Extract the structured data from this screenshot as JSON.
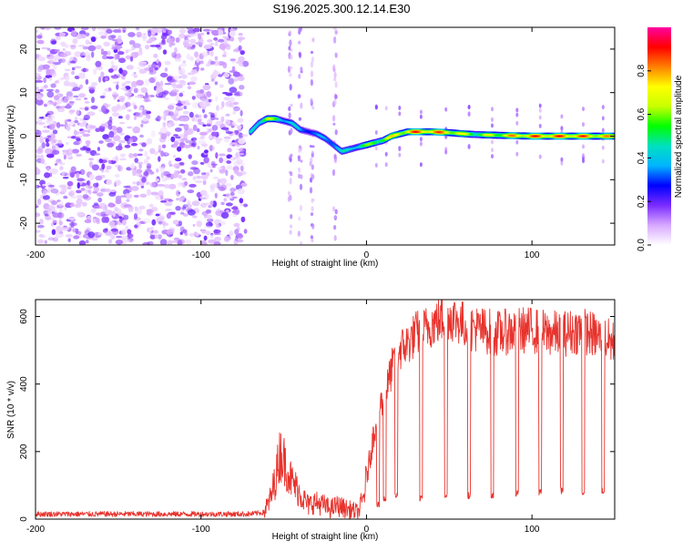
{
  "title": "S196.2025.300.12.14.E30",
  "chart_data": [
    {
      "type": "heatmap",
      "xlabel": "Height of straight line (km)",
      "ylabel": "Frequency (Hz)",
      "xlim": [
        -200,
        150
      ],
      "ylim": [
        -25,
        25
      ],
      "x_ticks": [
        -200,
        -100,
        0,
        100
      ],
      "x_tick_labels": [
        "-200",
        "-100",
        "0",
        "100"
      ],
      "y_ticks": [
        -20,
        -10,
        0,
        10,
        20
      ],
      "y_tick_labels": [
        "-20",
        "-10",
        "0",
        "10",
        "20"
      ],
      "colorbar": {
        "label": "Normalized spectral amplitude",
        "range": [
          0,
          1
        ],
        "ticks": [
          0.0,
          0.2,
          0.4,
          0.6,
          0.8
        ],
        "tick_labels": [
          "0.0",
          "0.2",
          "0.4",
          "0.6",
          "0.8"
        ],
        "colors": [
          "#ffffff",
          "#d8a8ff",
          "#7a2cff",
          "#0000ff",
          "#00b4ff",
          "#00e0c0",
          "#00ff00",
          "#c8ff00",
          "#ffff00",
          "#ff8000",
          "#ff0000",
          "#ff00a0"
        ]
      },
      "noise_region": {
        "x_from": -200,
        "x_to": -73
      },
      "signal_track": {
        "x": [
          -70,
          -65,
          -60,
          -55,
          -50,
          -45,
          -40,
          -35,
          -30,
          -25,
          -20,
          -15,
          -10,
          -5,
          0,
          5,
          10,
          15,
          20,
          25,
          30,
          40,
          50,
          60,
          70,
          80,
          90,
          100,
          110,
          120,
          130,
          140,
          150
        ],
        "frequency": [
          1,
          3,
          4,
          4,
          3.5,
          3,
          1.5,
          1,
          0.5,
          -0.5,
          -2,
          -3.5,
          -3,
          -2.5,
          -2,
          -1.5,
          -1,
          0,
          0.5,
          1,
          1,
          1,
          0.8,
          0.5,
          0.3,
          0.2,
          0.1,
          0,
          0,
          0,
          0,
          0,
          0
        ],
        "amplitude": [
          0.45,
          0.55,
          0.7,
          0.6,
          0.5,
          0.45,
          0.4,
          0.4,
          0.35,
          0.4,
          0.45,
          0.45,
          0.5,
          0.55,
          0.6,
          0.65,
          0.7,
          0.75,
          0.8,
          0.85,
          0.9,
          0.9,
          0.85,
          0.7,
          0.65,
          0.75,
          0.85,
          0.9,
          0.9,
          0.9,
          0.9,
          0.85,
          0.8
        ]
      }
    },
    {
      "type": "line",
      "xlabel": "Height of straight line (km)",
      "ylabel": "SNR (10 * v/v)",
      "xlim": [
        -200,
        150
      ],
      "ylim": [
        0,
        650
      ],
      "x_ticks": [
        -200,
        -100,
        0,
        100
      ],
      "x_tick_labels": [
        "-200",
        "-100",
        "0",
        "100"
      ],
      "y_ticks": [
        0,
        200,
        400,
        600
      ],
      "y_tick_labels": [
        "0",
        "200",
        "400",
        "600"
      ],
      "color": "#e8322c",
      "series": [
        {
          "name": "SNR",
          "x": [
            -200,
            -150,
            -100,
            -70,
            -62,
            -58,
            -55,
            -52,
            -48,
            -45,
            -42,
            -38,
            -35,
            -32,
            -28,
            -25,
            -22,
            -18,
            -15,
            -12,
            -8,
            -5,
            -2,
            0,
            2,
            5,
            8,
            12,
            15,
            18,
            20,
            25,
            30,
            35,
            40,
            45,
            50,
            55,
            60,
            70,
            80,
            90,
            100,
            110,
            120,
            130,
            140,
            150
          ],
          "y": [
            15,
            15,
            15,
            15,
            20,
            60,
            120,
            200,
            150,
            110,
            90,
            60,
            40,
            50,
            45,
            40,
            30,
            40,
            35,
            30,
            25,
            20,
            60,
            120,
            180,
            270,
            330,
            380,
            440,
            480,
            500,
            520,
            550,
            560,
            580,
            590,
            600,
            590,
            570,
            560,
            550,
            560,
            560,
            550,
            550,
            560,
            540,
            520
          ]
        }
      ],
      "dropouts": [
        {
          "x": 7,
          "y": 40
        },
        {
          "x": 11,
          "y": 60
        },
        {
          "x": 18,
          "y": 70
        },
        {
          "x": 33,
          "y": 60
        },
        {
          "x": 48,
          "y": 70
        },
        {
          "x": 62,
          "y": 70
        },
        {
          "x": 76,
          "y": 70
        },
        {
          "x": 91,
          "y": 75
        },
        {
          "x": 105,
          "y": 80
        },
        {
          "x": 118,
          "y": 85
        },
        {
          "x": 131,
          "y": 80
        },
        {
          "x": 143,
          "y": 85
        }
      ]
    }
  ]
}
